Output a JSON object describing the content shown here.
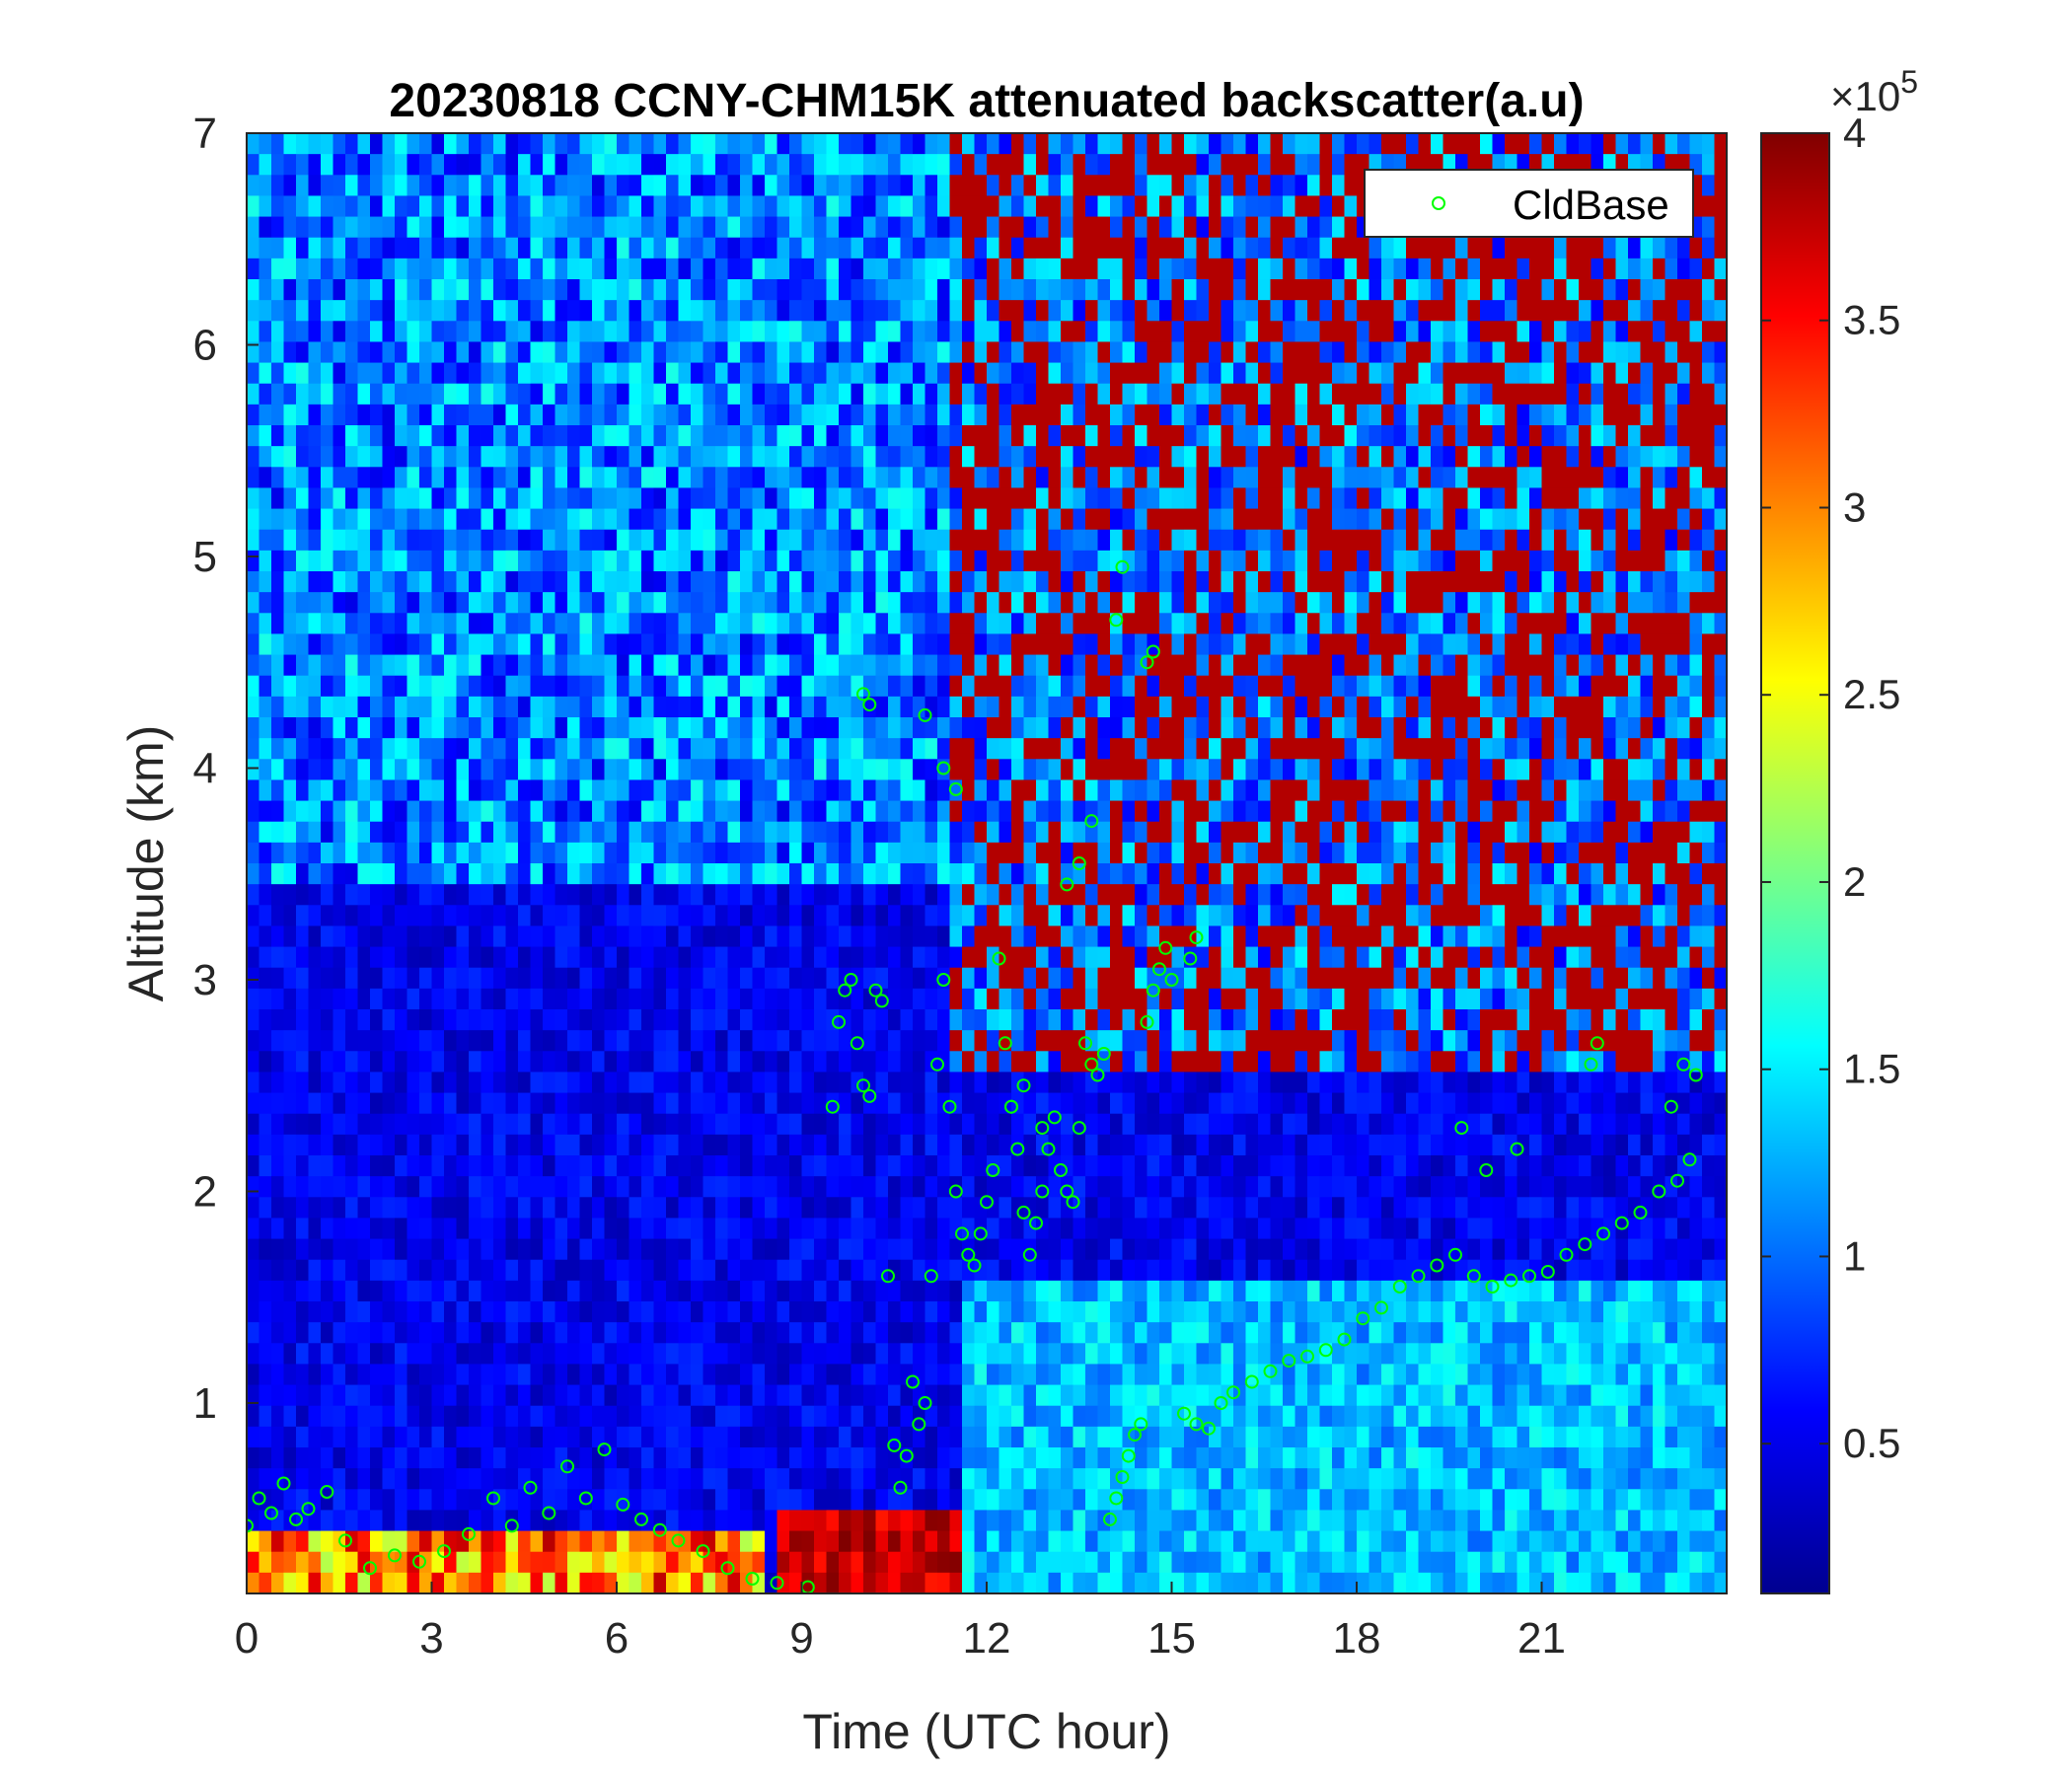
{
  "chart_data": {
    "type": "heatmap",
    "title": "20230818 CCNY-CHM15K attenuated backscatter(a.u)",
    "xlabel": "Time (UTC hour)",
    "ylabel": "Altitude (km)",
    "xlim": [
      0,
      24
    ],
    "ylim": [
      0.1,
      7
    ],
    "xticks": [
      0,
      3,
      6,
      9,
      12,
      15,
      18,
      21
    ],
    "yticks": [
      1,
      2,
      3,
      4,
      5,
      6,
      7
    ],
    "colorbar": {
      "colormap": "jet",
      "clim": [
        0.1,
        4.0
      ],
      "ticks": [
        0.5,
        1,
        1.5,
        2,
        2.5,
        3,
        3.5,
        4
      ],
      "exponent_label": "×10",
      "exponent_power": "5"
    },
    "legend": {
      "entries": [
        "CldBase"
      ],
      "location": "top-right",
      "marker": "o",
      "marker_color": "#00ff00"
    },
    "series": [
      {
        "name": "CldBase",
        "x": [
          0.0,
          0.2,
          0.4,
          0.6,
          0.8,
          1.0,
          1.3,
          1.6,
          2.0,
          2.4,
          2.8,
          3.2,
          3.6,
          4.0,
          4.3,
          4.6,
          4.9,
          5.2,
          5.5,
          5.8,
          6.1,
          6.4,
          6.7,
          7.0,
          7.4,
          7.8,
          8.2,
          8.6,
          9.1,
          9.5,
          9.6,
          9.7,
          9.8,
          9.9,
          10.0,
          10.1,
          10.2,
          10.3,
          10.4,
          10.5,
          10.6,
          10.7,
          10.8,
          10.9,
          11.0,
          11.1,
          11.2,
          11.3,
          11.4,
          11.5,
          11.6,
          11.7,
          11.8,
          11.9,
          12.0,
          12.1,
          12.2,
          12.3,
          12.4,
          12.5,
          12.6,
          12.7,
          12.8,
          12.9,
          13.0,
          13.1,
          13.2,
          13.3,
          13.4,
          13.5,
          13.6,
          13.7,
          13.8,
          13.9,
          14.0,
          14.1,
          14.2,
          14.3,
          14.4,
          14.5,
          14.6,
          14.7,
          14.8,
          14.9,
          15.0,
          15.2,
          15.4,
          15.6,
          15.8,
          16.0,
          16.3,
          16.6,
          16.9,
          17.2,
          17.5,
          17.8,
          18.1,
          18.4,
          18.7,
          19.0,
          19.3,
          19.6,
          19.9,
          20.2,
          20.5,
          20.8,
          21.1,
          21.4,
          21.7,
          22.0,
          22.3,
          22.6,
          22.9,
          23.2,
          23.4,
          10.0,
          10.1,
          11.0,
          11.3,
          11.5,
          14.1,
          14.2,
          14.6,
          14.7,
          13.3,
          13.5,
          13.7,
          12.4,
          12.6,
          12.9,
          15.3,
          15.4,
          19.7,
          20.1,
          20.6,
          21.8,
          21.9,
          23.1,
          23.3,
          23.5
        ],
        "y": [
          0.42,
          0.55,
          0.48,
          0.62,
          0.45,
          0.5,
          0.58,
          0.35,
          0.22,
          0.28,
          0.25,
          0.3,
          0.38,
          0.55,
          0.42,
          0.6,
          0.48,
          0.7,
          0.55,
          0.78,
          0.52,
          0.45,
          0.4,
          0.35,
          0.3,
          0.22,
          0.17,
          0.15,
          0.13,
          2.4,
          2.8,
          2.95,
          3.0,
          2.7,
          2.5,
          2.45,
          2.95,
          2.9,
          1.6,
          0.8,
          0.6,
          0.75,
          1.1,
          0.9,
          1.0,
          1.6,
          2.6,
          3.0,
          2.4,
          2.0,
          1.8,
          1.7,
          1.65,
          1.8,
          1.95,
          2.1,
          3.1,
          2.7,
          2.4,
          2.2,
          1.9,
          1.7,
          1.85,
          2.0,
          2.2,
          2.35,
          2.1,
          2.0,
          1.95,
          2.3,
          2.7,
          2.6,
          2.55,
          2.65,
          0.45,
          0.55,
          0.65,
          0.75,
          0.85,
          0.9,
          2.8,
          2.95,
          3.05,
          3.15,
          3.0,
          0.95,
          0.9,
          0.88,
          1.0,
          1.05,
          1.1,
          1.15,
          1.2,
          1.22,
          1.25,
          1.3,
          1.4,
          1.45,
          1.55,
          1.6,
          1.65,
          1.7,
          1.6,
          1.55,
          1.58,
          1.6,
          1.62,
          1.7,
          1.75,
          1.8,
          1.85,
          1.9,
          2.0,
          2.05,
          2.15,
          4.35,
          4.3,
          4.25,
          4.0,
          3.9,
          4.7,
          4.95,
          4.5,
          4.55,
          3.45,
          3.55,
          3.75,
          2.4,
          2.5,
          2.3,
          3.1,
          3.2,
          2.3,
          2.1,
          2.2,
          2.6,
          2.7,
          2.4,
          2.6,
          2.55
        ]
      }
    ]
  }
}
